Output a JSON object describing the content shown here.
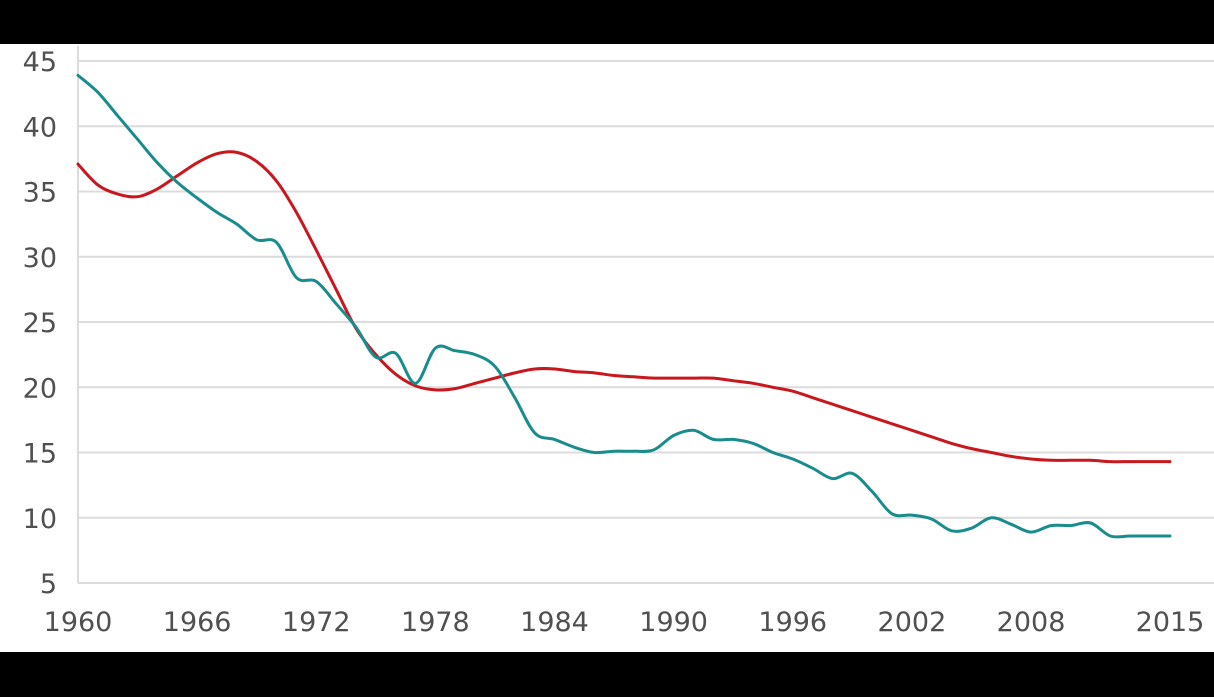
{
  "chart_data": {
    "type": "line",
    "title": "",
    "xlabel": "",
    "ylabel": "",
    "xlim": [
      1960,
      2015
    ],
    "ylim": [
      5,
      45
    ],
    "grid": true,
    "x_ticks": [
      "1960",
      "1966",
      "1972",
      "1978",
      "1984",
      "1990",
      "1996",
      "2002",
      "2008",
      "2015"
    ],
    "y_ticks": [
      "5",
      "10",
      "15",
      "20",
      "25",
      "30",
      "35",
      "40",
      "45"
    ],
    "background_color": "#ffffff",
    "frame_color": "#000000",
    "grid_color": "#dcdcdc",
    "series": [
      {
        "name": "red line",
        "color": "#c8171e",
        "x": [
          1960,
          1961,
          1962,
          1963,
          1964,
          1965,
          1966,
          1967,
          1968,
          1969,
          1970,
          1971,
          1972,
          1973,
          1974,
          1975,
          1976,
          1977,
          1978,
          1979,
          1980,
          1981,
          1982,
          1983,
          1984,
          1985,
          1986,
          1987,
          1988,
          1989,
          1990,
          1991,
          1992,
          1993,
          1994,
          1995,
          1996,
          1997,
          1998,
          1999,
          2000,
          2001,
          2002,
          2003,
          2004,
          2005,
          2006,
          2007,
          2008,
          2009,
          2010,
          2011,
          2012,
          2013,
          2014,
          2015
        ],
        "values": [
          37.1,
          35.5,
          34.8,
          34.6,
          35.2,
          36.2,
          37.2,
          37.9,
          38.0,
          37.3,
          35.8,
          33.4,
          30.5,
          27.5,
          24.5,
          22.5,
          21.0,
          20.1,
          19.8,
          19.9,
          20.3,
          20.7,
          21.1,
          21.4,
          21.4,
          21.2,
          21.1,
          20.9,
          20.8,
          20.7,
          20.7,
          20.7,
          20.7,
          20.5,
          20.3,
          20.0,
          19.7,
          19.2,
          18.7,
          18.2,
          17.7,
          17.2,
          16.7,
          16.2,
          15.7,
          15.3,
          15.0,
          14.7,
          14.5,
          14.4,
          14.4,
          14.4,
          14.3,
          14.3,
          14.3,
          14.3
        ]
      },
      {
        "name": "teal line",
        "color": "#1a8c8c",
        "x": [
          1960,
          1961,
          1962,
          1963,
          1964,
          1965,
          1966,
          1967,
          1968,
          1969,
          1970,
          1971,
          1972,
          1973,
          1974,
          1975,
          1976,
          1977,
          1978,
          1979,
          1980,
          1981,
          1982,
          1983,
          1984,
          1985,
          1986,
          1987,
          1988,
          1989,
          1990,
          1991,
          1992,
          1993,
          1994,
          1995,
          1996,
          1997,
          1998,
          1999,
          2000,
          2001,
          2002,
          2003,
          2004,
          2005,
          2006,
          2007,
          2008,
          2009,
          2010,
          2011,
          2012,
          2013,
          2014,
          2015
        ],
        "values": [
          43.9,
          42.6,
          40.8,
          39.0,
          37.2,
          35.7,
          34.5,
          33.4,
          32.5,
          31.3,
          31.1,
          28.4,
          28.1,
          26.4,
          24.6,
          22.3,
          22.6,
          20.3,
          23.0,
          22.8,
          22.5,
          21.6,
          19.2,
          16.5,
          16.0,
          15.4,
          15.0,
          15.1,
          15.1,
          15.2,
          16.3,
          16.7,
          16.0,
          16.0,
          15.7,
          15.0,
          14.5,
          13.8,
          13.0,
          13.4,
          12.0,
          10.3,
          10.2,
          9.9,
          9.0,
          9.2,
          10.0,
          9.5,
          8.9,
          9.4,
          9.4,
          9.6,
          8.6,
          8.6,
          8.6,
          8.6
        ]
      }
    ]
  }
}
